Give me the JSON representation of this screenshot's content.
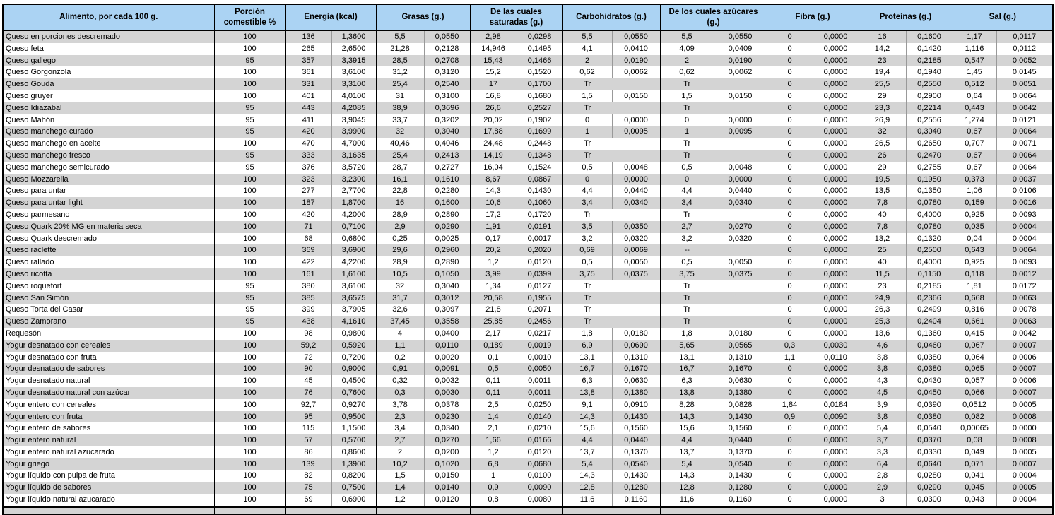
{
  "colors": {
    "header_bg": "#abd3f3",
    "row_alt_bg": "#d4d4d4",
    "row_base_bg": "#ffffff",
    "border_dark": "#000000",
    "sub_divider": "#999999",
    "text": "#000000"
  },
  "table": {
    "headers": [
      "Alimento, por cada 100 g.",
      "Porción comestible %",
      "Energía (kcal)",
      "Grasas (g.)",
      "De las cuales saturadas (g.)",
      "Carbohidratos (g.)",
      "De los cuales azúcares (g.)",
      "Fibra (g.)",
      "Proteínas (g.)",
      "Sal (g.)"
    ],
    "rows": [
      [
        "Queso en porciones descremado",
        "100",
        "136",
        "1,3600",
        "5,5",
        "0,0550",
        "2,98",
        "0,0298",
        "5,5",
        "0,0550",
        "5,5",
        "0,0550",
        "0",
        "0,0000",
        "16",
        "0,1600",
        "1,17",
        "0,0117"
      ],
      [
        "Queso feta",
        "100",
        "265",
        "2,6500",
        "21,28",
        "0,2128",
        "14,946",
        "0,1495",
        "4,1",
        "0,0410",
        "4,09",
        "0,0409",
        "0",
        "0,0000",
        "14,2",
        "0,1420",
        "1,116",
        "0,0112"
      ],
      [
        "Queso gallego",
        "95",
        "357",
        "3,3915",
        "28,5",
        "0,2708",
        "15,43",
        "0,1466",
        "2",
        "0,0190",
        "2",
        "0,0190",
        "0",
        "0,0000",
        "23",
        "0,2185",
        "0,547",
        "0,0052"
      ],
      [
        "Queso Gorgonzola",
        "100",
        "361",
        "3,6100",
        "31,2",
        "0,3120",
        "15,2",
        "0,1520",
        "0,62",
        "0,0062",
        "0,62",
        "0,0062",
        "0",
        "0,0000",
        "19,4",
        "0,1940",
        "1,45",
        "0,0145"
      ],
      [
        "Queso Gouda",
        "100",
        "331",
        "3,3100",
        "25,4",
        "0,2540",
        "17",
        "0,1700",
        "Tr",
        "",
        "Tr",
        "",
        "0",
        "0,0000",
        "25,5",
        "0,2550",
        "0,512",
        "0,0051"
      ],
      [
        "Queso gruyer",
        "100",
        "401",
        "4,0100",
        "31",
        "0,3100",
        "16,8",
        "0,1680",
        "1,5",
        "0,0150",
        "1,5",
        "0,0150",
        "0",
        "0,0000",
        "29",
        "0,2900",
        "0,64",
        "0,0064"
      ],
      [
        "Queso Idiazábal",
        "95",
        "443",
        "4,2085",
        "38,9",
        "0,3696",
        "26,6",
        "0,2527",
        "Tr",
        "",
        "Tr",
        "",
        "0",
        "0,0000",
        "23,3",
        "0,2214",
        "0,443",
        "0,0042"
      ],
      [
        "Queso Mahón",
        "95",
        "411",
        "3,9045",
        "33,7",
        "0,3202",
        "20,02",
        "0,1902",
        "0",
        "0,0000",
        "0",
        "0,0000",
        "0",
        "0,0000",
        "26,9",
        "0,2556",
        "1,274",
        "0,0121"
      ],
      [
        "Queso manchego curado",
        "95",
        "420",
        "3,9900",
        "32",
        "0,3040",
        "17,88",
        "0,1699",
        "1",
        "0,0095",
        "1",
        "0,0095",
        "0",
        "0,0000",
        "32",
        "0,3040",
        "0,67",
        "0,0064"
      ],
      [
        "Queso manchego en aceite",
        "100",
        "470",
        "4,7000",
        "40,46",
        "0,4046",
        "24,48",
        "0,2448",
        "Tr",
        "",
        "Tr",
        "",
        "0",
        "0,0000",
        "26,5",
        "0,2650",
        "0,707",
        "0,0071"
      ],
      [
        "Queso manchego fresco",
        "95",
        "333",
        "3,1635",
        "25,4",
        "0,2413",
        "14,19",
        "0,1348",
        "Tr",
        "",
        "Tr",
        "",
        "0",
        "0,0000",
        "26",
        "0,2470",
        "0,67",
        "0,0064"
      ],
      [
        "Queso manchego semicurado",
        "95",
        "376",
        "3,5720",
        "28,7",
        "0,2727",
        "16,04",
        "0,1524",
        "0,5",
        "0,0048",
        "0,5",
        "0,0048",
        "0",
        "0,0000",
        "29",
        "0,2755",
        "0,67",
        "0,0064"
      ],
      [
        "Queso Mozzarella",
        "100",
        "323",
        "3,2300",
        "16,1",
        "0,1610",
        "8,67",
        "0,0867",
        "0",
        "0,0000",
        "0",
        "0,0000",
        "0",
        "0,0000",
        "19,5",
        "0,1950",
        "0,373",
        "0,0037"
      ],
      [
        "Queso para untar",
        "100",
        "277",
        "2,7700",
        "22,8",
        "0,2280",
        "14,3",
        "0,1430",
        "4,4",
        "0,0440",
        "4,4",
        "0,0440",
        "0",
        "0,0000",
        "13,5",
        "0,1350",
        "1,06",
        "0,0106"
      ],
      [
        "Queso para untar light",
        "100",
        "187",
        "1,8700",
        "16",
        "0,1600",
        "10,6",
        "0,1060",
        "3,4",
        "0,0340",
        "3,4",
        "0,0340",
        "0",
        "0,0000",
        "7,8",
        "0,0780",
        "0,159",
        "0,0016"
      ],
      [
        "Queso parmesano",
        "100",
        "420",
        "4,2000",
        "28,9",
        "0,2890",
        "17,2",
        "0,1720",
        "Tr",
        "",
        "Tr",
        "",
        "0",
        "0,0000",
        "40",
        "0,4000",
        "0,925",
        "0,0093"
      ],
      [
        "Queso Quark 20% MG en materia seca",
        "100",
        "71",
        "0,7100",
        "2,9",
        "0,0290",
        "1,91",
        "0,0191",
        "3,5",
        "0,0350",
        "2,7",
        "0,0270",
        "0",
        "0,0000",
        "7,8",
        "0,0780",
        "0,035",
        "0,0004"
      ],
      [
        "Queso Quark descremado",
        "100",
        "68",
        "0,6800",
        "0,25",
        "0,0025",
        "0,17",
        "0,0017",
        "3,2",
        "0,0320",
        "3,2",
        "0,0320",
        "0",
        "0,0000",
        "13,2",
        "0,1320",
        "0,04",
        "0,0004"
      ],
      [
        "Queso raclette",
        "100",
        "369",
        "3,6900",
        "29,6",
        "0,2960",
        "20,2",
        "0,2020",
        "0,69",
        "0,0069",
        "--",
        "",
        "0",
        "0,0000",
        "25",
        "0,2500",
        "0,643",
        "0,0064"
      ],
      [
        "Queso rallado",
        "100",
        "422",
        "4,2200",
        "28,9",
        "0,2890",
        "1,2",
        "0,0120",
        "0,5",
        "0,0050",
        "0,5",
        "0,0050",
        "0",
        "0,0000",
        "40",
        "0,4000",
        "0,925",
        "0,0093"
      ],
      [
        "Queso ricotta",
        "100",
        "161",
        "1,6100",
        "10,5",
        "0,1050",
        "3,99",
        "0,0399",
        "3,75",
        "0,0375",
        "3,75",
        "0,0375",
        "0",
        "0,0000",
        "11,5",
        "0,1150",
        "0,118",
        "0,0012"
      ],
      [
        "Queso roquefort",
        "95",
        "380",
        "3,6100",
        "32",
        "0,3040",
        "1,34",
        "0,0127",
        "Tr",
        "",
        "Tr",
        "",
        "0",
        "0,0000",
        "23",
        "0,2185",
        "1,81",
        "0,0172"
      ],
      [
        "Queso San Simón",
        "95",
        "385",
        "3,6575",
        "31,7",
        "0,3012",
        "20,58",
        "0,1955",
        "Tr",
        "",
        "Tr",
        "",
        "0",
        "0,0000",
        "24,9",
        "0,2366",
        "0,668",
        "0,0063"
      ],
      [
        "Queso Torta del Casar",
        "95",
        "399",
        "3,7905",
        "32,6",
        "0,3097",
        "21,8",
        "0,2071",
        "Tr",
        "",
        "Tr",
        "",
        "0",
        "0,0000",
        "26,3",
        "0,2499",
        "0,816",
        "0,0078"
      ],
      [
        "Queso Zamorano",
        "95",
        "438",
        "4,1610",
        "37,45",
        "0,3558",
        "25,85",
        "0,2456",
        "Tr",
        "",
        "Tr",
        "",
        "0",
        "0,0000",
        "25,3",
        "0,2404",
        "0,661",
        "0,0063"
      ],
      [
        "Requesón",
        "100",
        "98",
        "0,9800",
        "4",
        "0,0400",
        "2,17",
        "0,0217",
        "1,8",
        "0,0180",
        "1,8",
        "0,0180",
        "0",
        "0,0000",
        "13,6",
        "0,1360",
        "0,415",
        "0,0042"
      ],
      [
        "Yogur desnatado con cereales",
        "100",
        "59,2",
        "0,5920",
        "1,1",
        "0,0110",
        "0,189",
        "0,0019",
        "6,9",
        "0,0690",
        "5,65",
        "0,0565",
        "0,3",
        "0,0030",
        "4,6",
        "0,0460",
        "0,067",
        "0,0007"
      ],
      [
        "Yogur desnatado con fruta",
        "100",
        "72",
        "0,7200",
        "0,2",
        "0,0020",
        "0,1",
        "0,0010",
        "13,1",
        "0,1310",
        "13,1",
        "0,1310",
        "1,1",
        "0,0110",
        "3,8",
        "0,0380",
        "0,064",
        "0,0006"
      ],
      [
        "Yogur desnatado de sabores",
        "100",
        "90",
        "0,9000",
        "0,91",
        "0,0091",
        "0,5",
        "0,0050",
        "16,7",
        "0,1670",
        "16,7",
        "0,1670",
        "0",
        "0,0000",
        "3,8",
        "0,0380",
        "0,065",
        "0,0007"
      ],
      [
        "Yogur desnatado natural",
        "100",
        "45",
        "0,4500",
        "0,32",
        "0,0032",
        "0,11",
        "0,0011",
        "6,3",
        "0,0630",
        "6,3",
        "0,0630",
        "0",
        "0,0000",
        "4,3",
        "0,0430",
        "0,057",
        "0,0006"
      ],
      [
        "Yogur desnatado natural con azúcar",
        "100",
        "76",
        "0,7600",
        "0,3",
        "0,0030",
        "0,11",
        "0,0011",
        "13,8",
        "0,1380",
        "13,8",
        "0,1380",
        "0",
        "0,0000",
        "4,5",
        "0,0450",
        "0,066",
        "0,0007"
      ],
      [
        "Yogur entero con cereales",
        "100",
        "92,7",
        "0,9270",
        "3,78",
        "0,0378",
        "2,5",
        "0,0250",
        "9,1",
        "0,0910",
        "8,28",
        "0,0828",
        "1,84",
        "0,0184",
        "3,9",
        "0,0390",
        "0,0512",
        "0,0005"
      ],
      [
        "Yogur entero con fruta",
        "100",
        "95",
        "0,9500",
        "2,3",
        "0,0230",
        "1,4",
        "0,0140",
        "14,3",
        "0,1430",
        "14,3",
        "0,1430",
        "0,9",
        "0,0090",
        "3,8",
        "0,0380",
        "0,082",
        "0,0008"
      ],
      [
        "Yogur entero de sabores",
        "100",
        "115",
        "1,1500",
        "3,4",
        "0,0340",
        "2,1",
        "0,0210",
        "15,6",
        "0,1560",
        "15,6",
        "0,1560",
        "0",
        "0,0000",
        "5,4",
        "0,0540",
        "0,00065",
        "0,0000"
      ],
      [
        "Yogur entero natural",
        "100",
        "57",
        "0,5700",
        "2,7",
        "0,0270",
        "1,66",
        "0,0166",
        "4,4",
        "0,0440",
        "4,4",
        "0,0440",
        "0",
        "0,0000",
        "3,7",
        "0,0370",
        "0,08",
        "0,0008"
      ],
      [
        "Yogur entero natural azucarado",
        "100",
        "86",
        "0,8600",
        "2",
        "0,0200",
        "1,2",
        "0,0120",
        "13,7",
        "0,1370",
        "13,7",
        "0,1370",
        "0",
        "0,0000",
        "3,3",
        "0,0330",
        "0,049",
        "0,0005"
      ],
      [
        "Yogur griego",
        "100",
        "139",
        "1,3900",
        "10,2",
        "0,1020",
        "6,8",
        "0,0680",
        "5,4",
        "0,0540",
        "5,4",
        "0,0540",
        "0",
        "0,0000",
        "6,4",
        "0,0640",
        "0,071",
        "0,0007"
      ],
      [
        "Yogur líquido con pulpa de fruta",
        "100",
        "82",
        "0,8200",
        "1,5",
        "0,0150",
        "1",
        "0,0100",
        "14,3",
        "0,1430",
        "14,3",
        "0,1430",
        "0",
        "0,0000",
        "2,8",
        "0,0280",
        "0,041",
        "0,0004"
      ],
      [
        "Yogur líquido de sabores",
        "100",
        "75",
        "0,7500",
        "1,4",
        "0,0140",
        "0,9",
        "0,0090",
        "12,8",
        "0,1280",
        "12,8",
        "0,1280",
        "0",
        "0,0000",
        "2,9",
        "0,0290",
        "0,045",
        "0,0005"
      ],
      [
        "Yogur líquido natural azucarado",
        "100",
        "69",
        "0,6900",
        "1,2",
        "0,0120",
        "0,8",
        "0,0080",
        "11,6",
        "0,1160",
        "11,6",
        "0,1160",
        "0",
        "0,0000",
        "3",
        "0,0300",
        "0,043",
        "0,0004"
      ]
    ]
  }
}
